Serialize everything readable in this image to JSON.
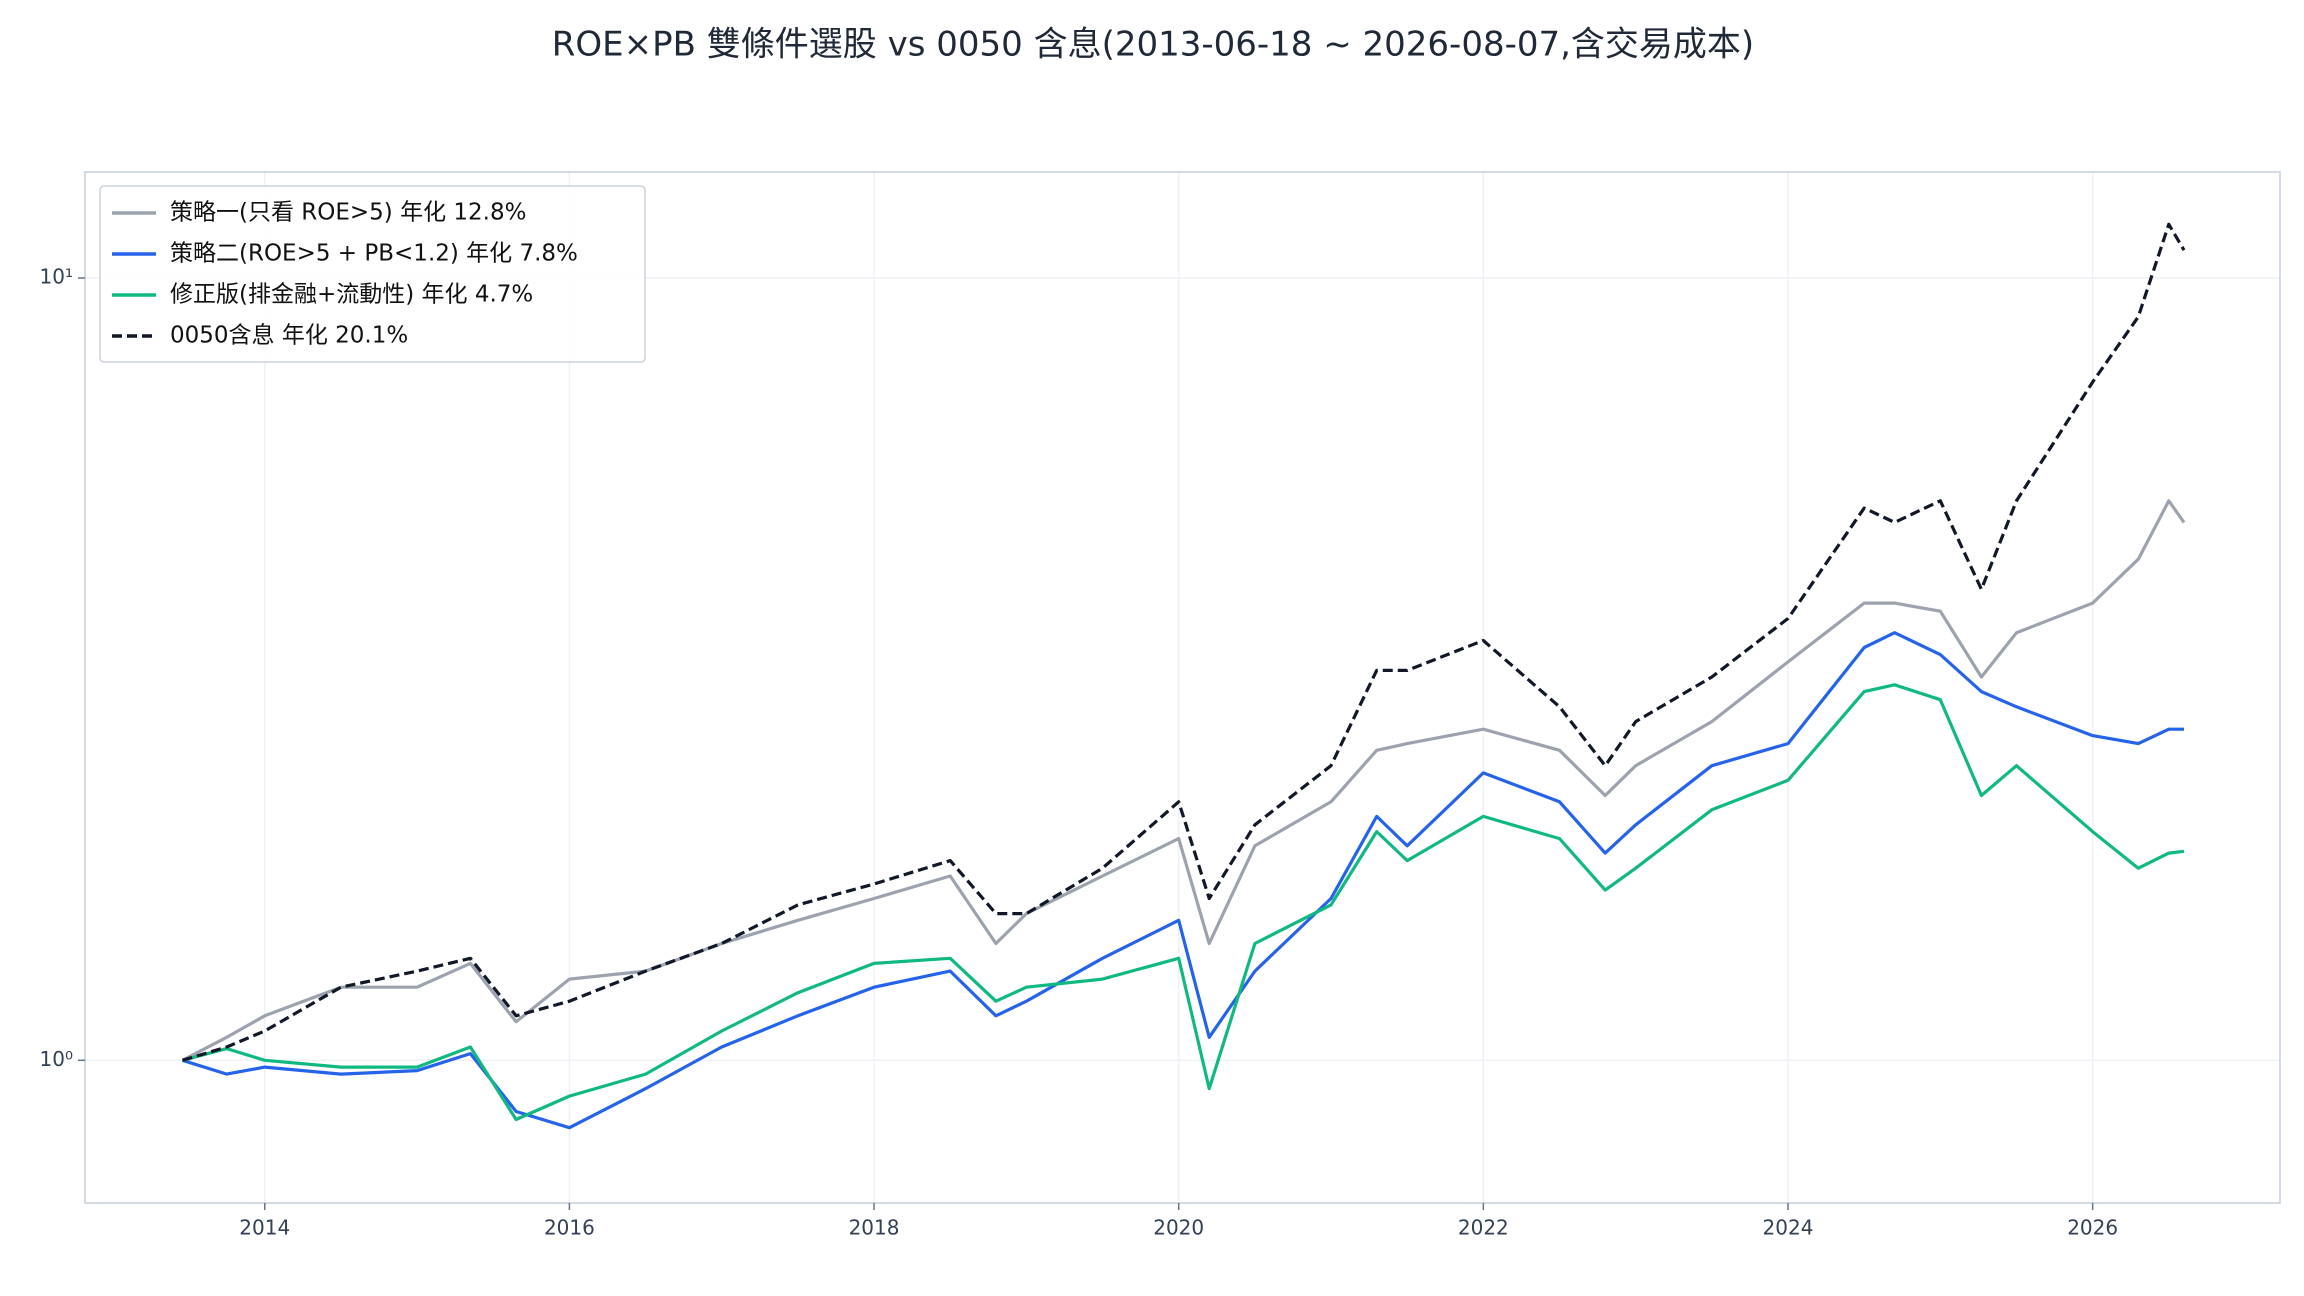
{
  "chart_data": {
    "type": "line",
    "title": "ROE×PB 雙條件選股 vs 0050 含息(2013-06-18 ~ 2026-08-07,含交易成本)",
    "log_y": true,
    "grid": true,
    "legend": "upper-left",
    "xlim": [
      2012.82,
      2027.23
    ],
    "xticks": [
      2014,
      2016,
      2018,
      2020,
      2022,
      2024,
      2026
    ],
    "ylim": [
      0.657,
      13.66
    ],
    "yticks": [
      {
        "value": 1,
        "label": "10⁰"
      },
      {
        "value": 10,
        "label": "10¹"
      }
    ],
    "x": [
      2013.46,
      2013.75,
      2014.0,
      2014.5,
      2015.0,
      2015.35,
      2015.65,
      2016.0,
      2016.5,
      2017.0,
      2017.5,
      2018.0,
      2018.5,
      2018.8,
      2019.0,
      2019.5,
      2020.0,
      2020.2,
      2020.5,
      2021.0,
      2021.3,
      2021.5,
      2022.0,
      2022.5,
      2022.8,
      2023.0,
      2023.5,
      2024.0,
      2024.5,
      2024.7,
      2025.0,
      2025.27,
      2025.5,
      2026.0,
      2026.3,
      2026.5,
      2026.6
    ],
    "series": [
      {
        "name": "策略一(只看 ROE>5) 年化 12.8%",
        "color": "#9ca3af",
        "linestyle": "solid",
        "values": [
          1.0,
          1.07,
          1.14,
          1.24,
          1.24,
          1.33,
          1.12,
          1.27,
          1.3,
          1.41,
          1.51,
          1.61,
          1.72,
          1.41,
          1.54,
          1.72,
          1.92,
          1.41,
          1.88,
          2.14,
          2.49,
          2.54,
          2.65,
          2.49,
          2.18,
          2.38,
          2.71,
          3.23,
          3.84,
          3.84,
          3.75,
          3.09,
          3.52,
          3.84,
          4.37,
          5.19,
          4.87
        ]
      },
      {
        "name": "策略二(ROE>5 + PB<1.2) 年化 7.8%",
        "color": "#2563eb",
        "linestyle": "solid",
        "values": [
          1.0,
          0.96,
          0.98,
          0.96,
          0.97,
          1.02,
          0.86,
          0.82,
          0.92,
          1.04,
          1.14,
          1.24,
          1.3,
          1.14,
          1.19,
          1.35,
          1.51,
          1.07,
          1.3,
          1.61,
          2.05,
          1.88,
          2.33,
          2.14,
          1.84,
          2.0,
          2.38,
          2.54,
          3.37,
          3.52,
          3.3,
          2.96,
          2.83,
          2.6,
          2.54,
          2.65,
          2.65
        ]
      },
      {
        "name": "修正版(排金融+流動性) 年化 4.7%",
        "color": "#10b981",
        "linestyle": "solid",
        "values": [
          1.0,
          1.035,
          1.0,
          0.98,
          0.98,
          1.04,
          0.84,
          0.9,
          0.96,
          1.09,
          1.22,
          1.33,
          1.35,
          1.19,
          1.24,
          1.27,
          1.35,
          0.92,
          1.41,
          1.58,
          1.96,
          1.8,
          2.05,
          1.92,
          1.65,
          1.76,
          2.09,
          2.28,
          2.96,
          3.02,
          2.89,
          2.18,
          2.38,
          1.96,
          1.76,
          1.84,
          1.85
        ]
      },
      {
        "name": "0050含息 年化 20.1%",
        "color": "#111827",
        "linestyle": "dashed",
        "values": [
          1.0,
          1.04,
          1.09,
          1.24,
          1.3,
          1.35,
          1.14,
          1.19,
          1.3,
          1.41,
          1.58,
          1.68,
          1.8,
          1.54,
          1.54,
          1.76,
          2.14,
          1.61,
          2.0,
          2.38,
          3.15,
          3.15,
          3.44,
          2.83,
          2.38,
          2.71,
          3.09,
          3.67,
          5.08,
          4.87,
          5.19,
          4.0,
          5.19,
          7.36,
          8.92,
          11.71,
          10.85
        ]
      }
    ]
  }
}
